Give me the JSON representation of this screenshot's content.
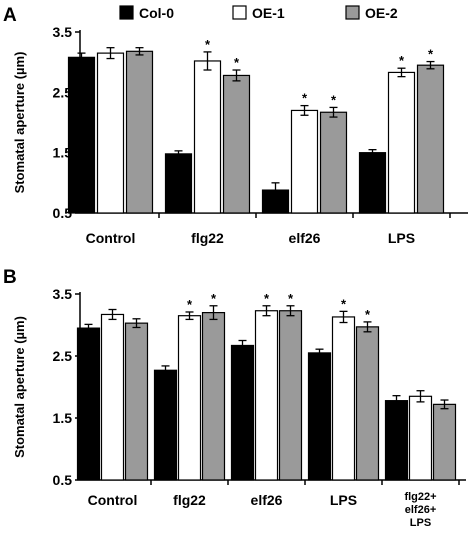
{
  "figure": {
    "panels": [
      "A",
      "B"
    ]
  },
  "chart_data": [
    {
      "type": "bar",
      "panel": "A",
      "ylabel": "Stomatal aperture (µm)",
      "xlabel": "",
      "ylim": [
        0.5,
        3.5
      ],
      "yticks": [
        "0.5",
        "1.5",
        "2.5",
        "3.5"
      ],
      "categories": [
        "Control",
        "flg22",
        "elf26",
        "LPS"
      ],
      "series": [
        {
          "name": "Col-0",
          "color": "#000000",
          "values": [
            3.08,
            1.48,
            0.88,
            1.5
          ],
          "errors": [
            0.07,
            0.05,
            0.12,
            0.05
          ],
          "significant": [
            false,
            false,
            false,
            false
          ]
        },
        {
          "name": "OE-1",
          "color": "#ffffff",
          "values": [
            3.15,
            3.02,
            2.2,
            2.83
          ],
          "errors": [
            0.09,
            0.15,
            0.08,
            0.07
          ],
          "significant": [
            false,
            true,
            true,
            true
          ]
        },
        {
          "name": "OE-2",
          "color": "#9a9a9a",
          "values": [
            3.18,
            2.78,
            2.17,
            2.95
          ],
          "errors": [
            0.06,
            0.09,
            0.08,
            0.06
          ],
          "significant": [
            false,
            true,
            true,
            true
          ]
        }
      ],
      "legend": {
        "placement": "top",
        "entries": [
          "Col-0",
          "OE-1",
          "OE-2"
        ]
      },
      "significance_marker": "*"
    },
    {
      "type": "bar",
      "panel": "B",
      "ylabel": "Stomatal aperture (µm)",
      "xlabel": "",
      "ylim": [
        0.5,
        3.5
      ],
      "yticks": [
        "0.5",
        "1.5",
        "2.5",
        "3.5"
      ],
      "categories": [
        "Control",
        "flg22",
        "elf26",
        "LPS",
        "flg22+\nelf26+\nLPS"
      ],
      "series": [
        {
          "name": "Col-0",
          "color": "#000000",
          "values": [
            2.95,
            2.27,
            2.67,
            2.55,
            1.78
          ],
          "errors": [
            0.06,
            0.07,
            0.08,
            0.06,
            0.08
          ],
          "significant": [
            false,
            false,
            false,
            false,
            false
          ]
        },
        {
          "name": "OE-1",
          "color": "#ffffff",
          "values": [
            3.17,
            3.15,
            3.23,
            3.13,
            1.85
          ],
          "errors": [
            0.08,
            0.06,
            0.08,
            0.09,
            0.09
          ],
          "significant": [
            false,
            true,
            true,
            true,
            false
          ]
        },
        {
          "name": "OE-2",
          "color": "#9a9a9a",
          "values": [
            3.03,
            3.2,
            3.23,
            2.97,
            1.72
          ],
          "errors": [
            0.07,
            0.11,
            0.08,
            0.08,
            0.07
          ],
          "significant": [
            false,
            true,
            true,
            true,
            false
          ]
        }
      ],
      "significance_marker": "*"
    }
  ]
}
